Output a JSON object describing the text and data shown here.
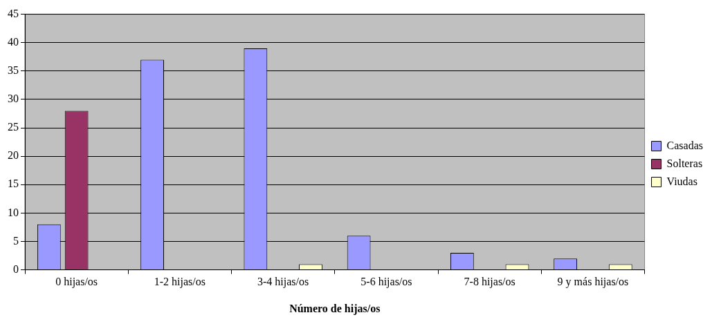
{
  "chart_data": {
    "type": "bar",
    "xlabel": "Número de hijas/os",
    "categories": [
      "0 hijas/os",
      "1-2 hijas/os",
      "3-4 hijas/os",
      "5-6 hijas/os",
      "7-8 hijas/os",
      "9 y más hijas/os"
    ],
    "series": [
      {
        "name": "Casadas",
        "color": "#9999ff",
        "values": [
          8,
          37,
          39,
          6,
          3,
          2
        ]
      },
      {
        "name": "Solteras",
        "color": "#993366",
        "values": [
          28,
          0,
          0,
          0,
          0,
          0
        ]
      },
      {
        "name": "Viudas",
        "color": "#ffffcc",
        "values": [
          0,
          0,
          1,
          0,
          1,
          1
        ]
      }
    ],
    "ylim": [
      0,
      45
    ],
    "yticks": [
      0,
      5,
      10,
      15,
      20,
      25,
      30,
      35,
      40,
      45
    ],
    "grid": "y",
    "legend": "right"
  }
}
